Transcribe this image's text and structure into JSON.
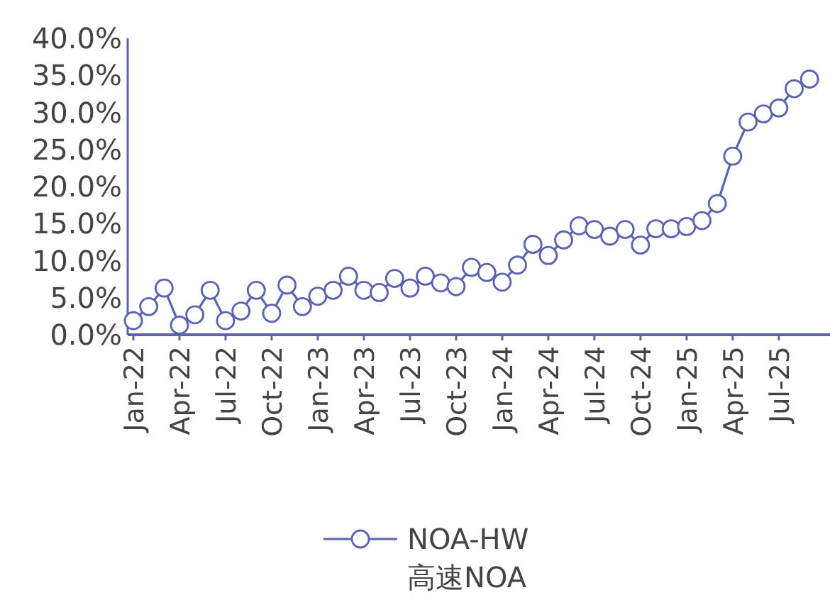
{
  "chart_data": {
    "type": "line",
    "categories": [
      "Jan-22",
      null,
      null,
      "Apr-22",
      null,
      null,
      "Jul-22",
      null,
      null,
      "Oct-22",
      null,
      null,
      "Jan-23",
      null,
      null,
      "Apr-23",
      null,
      null,
      "Jul-23",
      null,
      null,
      "Oct-23",
      null,
      null,
      "Jan-24",
      null,
      null,
      "Apr-24",
      null,
      null,
      "Jul-24",
      null,
      null,
      "Oct-24",
      null,
      null,
      "Jan-25",
      null,
      null,
      "Apr-25",
      null,
      null,
      "Jul-25",
      null,
      null
    ],
    "series": [
      {
        "name": "NOA-HW 高速NOA",
        "color": "#5b62b0",
        "values": [
          1.9,
          3.8,
          6.3,
          1.3,
          2.7,
          6.0,
          1.9,
          3.2,
          6.0,
          2.9,
          6.7,
          3.8,
          5.2,
          6.0,
          7.9,
          6.0,
          5.7,
          7.6,
          6.3,
          7.9,
          7.0,
          6.5,
          9.1,
          8.4,
          7.1,
          9.4,
          12.2,
          10.7,
          12.8,
          14.7,
          14.2,
          13.3,
          14.2,
          12.1,
          14.3,
          14.3,
          14.6,
          15.4,
          17.7,
          24.1,
          28.7,
          29.8,
          30.6,
          33.2,
          34.5
        ]
      }
    ],
    "ylim": [
      0,
      40
    ],
    "yticks": [
      {
        "value": 0,
        "label": "0.0%"
      },
      {
        "value": 5,
        "label": "5.0%"
      },
      {
        "value": 10,
        "label": "10.0%"
      },
      {
        "value": 15,
        "label": "15.0%"
      },
      {
        "value": 20,
        "label": "20.0%"
      },
      {
        "value": 25,
        "label": "25.0%"
      },
      {
        "value": 30,
        "label": "30.0%"
      },
      {
        "value": 35,
        "label": "35.0%"
      },
      {
        "value": 40,
        "label": "40.0%"
      }
    ],
    "marker": "circle",
    "line_style": "solid",
    "legend": "bottom",
    "grid": false
  }
}
